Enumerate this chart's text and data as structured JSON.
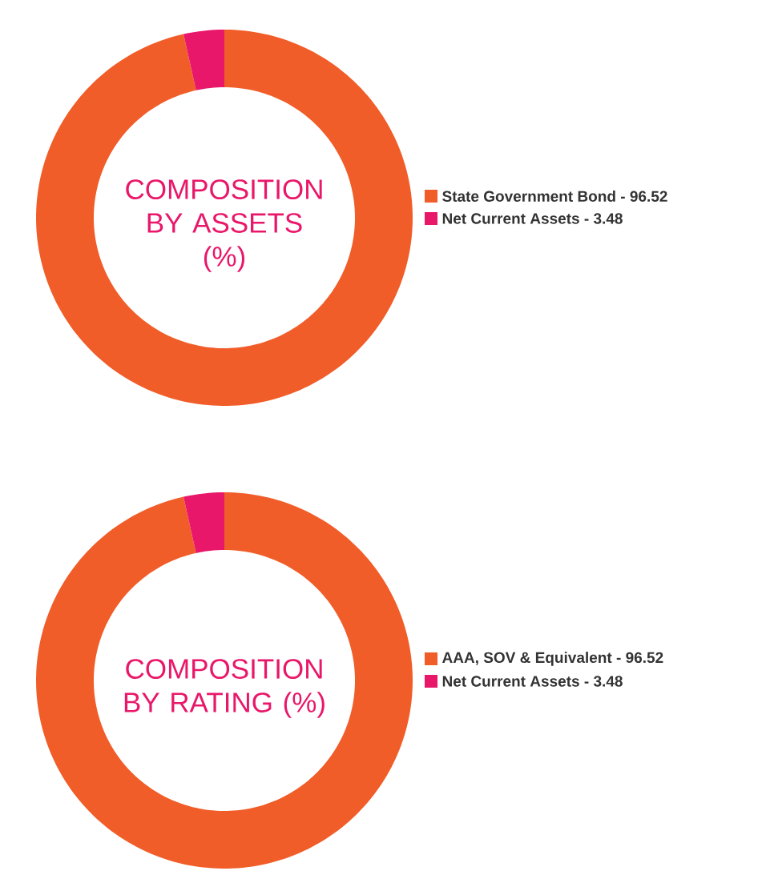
{
  "chart_data": [
    {
      "type": "donut",
      "title": "COMPOSITION BY ASSETS (%)",
      "categories": [
        "State Government Bond - 96.52",
        "Net Current Assets - 3.48"
      ],
      "values": [
        96.52,
        3.48
      ],
      "colors": [
        "#f15d29",
        "#e9176a"
      ],
      "legend": "right"
    },
    {
      "type": "donut",
      "title": "COMPOSITION BY RATING (%)",
      "categories": [
        "AAA, SOV & Equivalent - 96.52",
        "Net Current Assets - 3.48"
      ],
      "values": [
        96.52,
        3.48
      ],
      "colors": [
        "#f15d29",
        "#e9176a"
      ],
      "legend": "right"
    }
  ]
}
